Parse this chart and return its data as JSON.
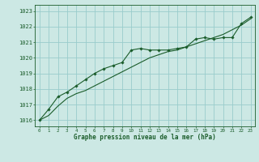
{
  "title": "Graphe pression niveau de la mer (hPa)",
  "background_color": "#cce8e4",
  "grid_color": "#99cccc",
  "line_color": "#1a5c2a",
  "xlim": [
    -0.5,
    23.5
  ],
  "ylim": [
    1015.6,
    1023.4
  ],
  "yticks": [
    1016,
    1017,
    1018,
    1019,
    1020,
    1021,
    1022,
    1023
  ],
  "xticks": [
    0,
    1,
    2,
    3,
    4,
    5,
    6,
    7,
    8,
    9,
    10,
    11,
    12,
    13,
    14,
    15,
    16,
    17,
    18,
    19,
    20,
    21,
    22,
    23
  ],
  "series1_x": [
    0,
    1,
    2,
    3,
    4,
    5,
    6,
    7,
    8,
    9,
    10,
    11,
    12,
    13,
    14,
    15,
    16,
    17,
    18,
    19,
    20,
    21,
    22,
    23
  ],
  "series1_y": [
    1016.0,
    1016.7,
    1017.5,
    1017.8,
    1018.2,
    1018.6,
    1019.0,
    1019.3,
    1019.5,
    1019.7,
    1020.5,
    1020.6,
    1020.5,
    1020.5,
    1020.5,
    1020.6,
    1020.7,
    1021.2,
    1021.3,
    1021.2,
    1021.3,
    1021.3,
    1022.2,
    1022.6
  ],
  "series2_x": [
    0,
    1,
    2,
    3,
    4,
    5,
    6,
    7,
    8,
    9,
    10,
    11,
    12,
    13,
    14,
    15,
    16,
    17,
    18,
    19,
    20,
    21,
    22,
    23
  ],
  "series2_y": [
    1016.0,
    1016.3,
    1016.9,
    1017.4,
    1017.7,
    1017.9,
    1018.2,
    1018.5,
    1018.8,
    1019.1,
    1019.4,
    1019.7,
    1020.0,
    1020.2,
    1020.4,
    1020.5,
    1020.7,
    1020.9,
    1021.1,
    1021.3,
    1021.5,
    1021.8,
    1022.1,
    1022.5
  ]
}
